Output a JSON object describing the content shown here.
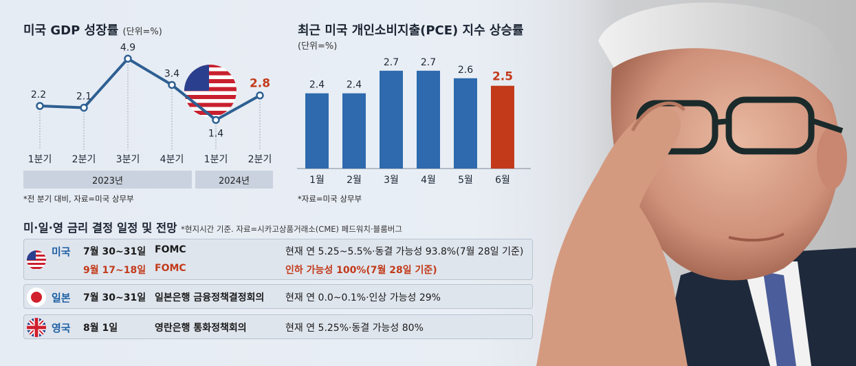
{
  "gdp": {
    "title": "미국 GDP 성장률",
    "unit": "(단위=%)",
    "note": "*전 분기 대비, 자료=미국 상무부",
    "years": [
      "2023년",
      "2024년"
    ]
  },
  "pce": {
    "title": "최근 미국 개인소비지출(PCE) 지수 상승률",
    "unit": "(단위=%)",
    "note": "*자료=미국 상무부"
  },
  "chart_data": [
    {
      "type": "line",
      "title": "미국 GDP 성장률",
      "categories": [
        "1분기",
        "2분기",
        "3분기",
        "4분기",
        "1분기",
        "2분기"
      ],
      "groups": [
        {
          "label": "2023년",
          "span": [
            0,
            3
          ]
        },
        {
          "label": "2024년",
          "span": [
            4,
            5
          ]
        }
      ],
      "values": [
        2.2,
        2.1,
        4.9,
        3.4,
        1.4,
        2.8
      ],
      "value_labels": [
        "2.2",
        "2.1",
        "4.9",
        "3.4",
        "1.4",
        "2.8"
      ],
      "highlight_last": true,
      "line_color": "#2e5f92",
      "highlight_color": "#c23a1a"
    },
    {
      "type": "bar",
      "title": "최근 미국 개인소비지출(PCE) 지수 상승률",
      "categories": [
        "1월",
        "2월",
        "3월",
        "4월",
        "5월",
        "6월"
      ],
      "values": [
        2.4,
        2.4,
        2.7,
        2.7,
        2.6,
        2.5
      ],
      "value_labels": [
        "2.4",
        "2.4",
        "2.7",
        "2.7",
        "2.6",
        "2.5"
      ],
      "bar_color": "#2e6aad",
      "highlight_color": "#c23a1a",
      "highlight_index": 5
    }
  ],
  "rates": {
    "title": "미·일·영 금리 결정 일정 및 전망",
    "note": "*현지시간 기준. 자료=시카고상품거래소(CME) 페드워치·블룸버그",
    "us": {
      "country": "미국",
      "rows": [
        {
          "date": "7월 30~31일",
          "event": "FOMC",
          "outlook": "현재 연 5.25~5.5%·동결 가능성 93.8%(7월 28일 기준)"
        },
        {
          "date": "9월 17~18일",
          "event": "FOMC",
          "outlook": "인하 가능성 100%(7월 28일 기준)"
        }
      ]
    },
    "jp": {
      "country": "일본",
      "date": "7월 30~31일",
      "event": "일본은행 금융정책결정회의",
      "outlook": "현재 연 0.0~0.1%·인상 가능성 29%"
    },
    "uk": {
      "country": "영국",
      "date": "8월 1일",
      "event": "영란은행 통화정책회의",
      "outlook": "현재 연 5.25%·동결 가능성 80%"
    }
  }
}
